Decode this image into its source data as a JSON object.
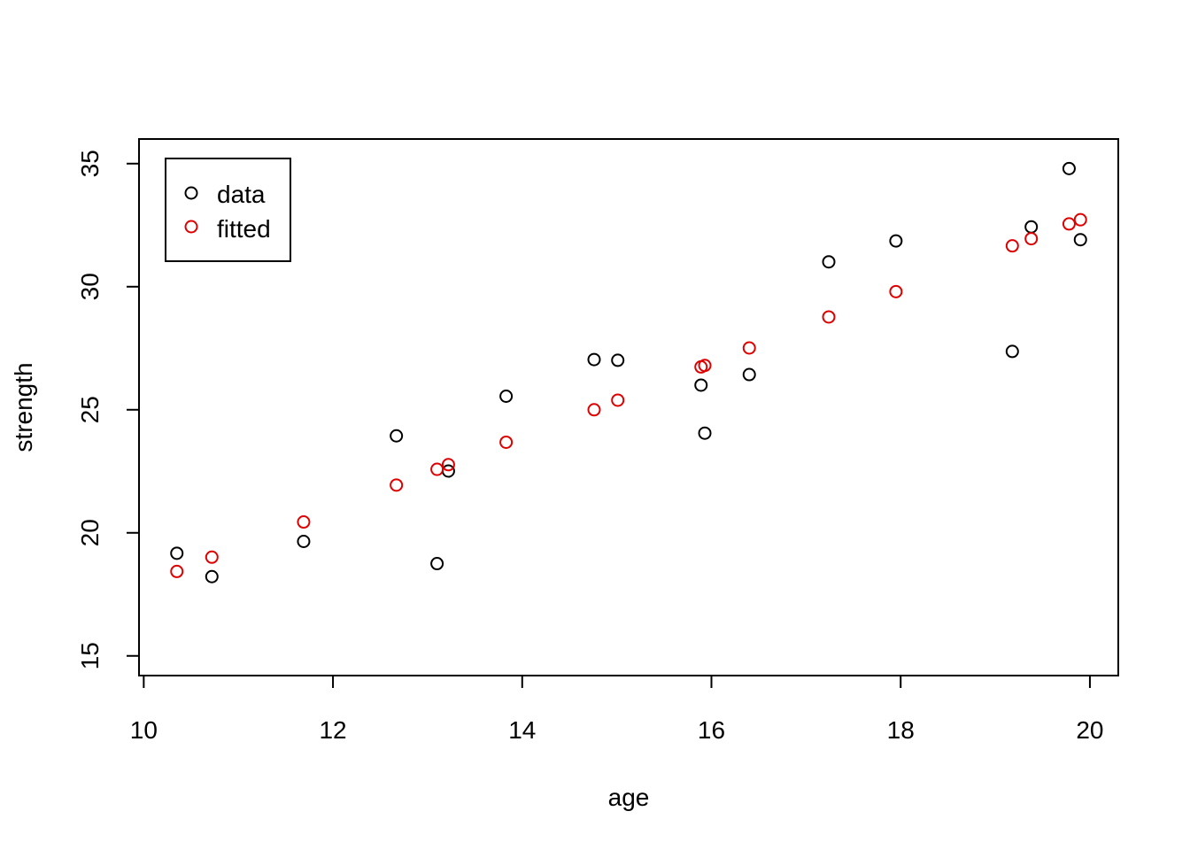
{
  "chart_data": {
    "type": "scatter",
    "xlabel": "age",
    "ylabel": "strength",
    "xlim": [
      9.95,
      20.3
    ],
    "ylim": [
      14.2,
      36.0
    ],
    "xticks": [
      "10",
      "12",
      "14",
      "16",
      "18",
      "20"
    ],
    "yticks": [
      "15",
      "20",
      "25",
      "30",
      "35"
    ],
    "grid": false,
    "legend_position": "top-left",
    "legend": [
      {
        "label": "data",
        "color": "#000000"
      },
      {
        "label": "fitted",
        "color": "#DF0000"
      }
    ],
    "series": [
      {
        "name": "data",
        "color": "#000000",
        "points": [
          [
            10.35,
            19.17
          ],
          [
            10.72,
            18.22
          ],
          [
            11.69,
            19.65
          ],
          [
            12.67,
            23.94
          ],
          [
            13.1,
            18.75
          ],
          [
            13.22,
            22.51
          ],
          [
            13.83,
            25.55
          ],
          [
            14.76,
            27.04
          ],
          [
            15.01,
            27.01
          ],
          [
            15.89,
            26.0
          ],
          [
            15.93,
            24.05
          ],
          [
            16.4,
            26.43
          ],
          [
            17.24,
            31.01
          ],
          [
            17.95,
            31.86
          ],
          [
            19.18,
            27.37
          ],
          [
            19.38,
            32.43
          ],
          [
            19.78,
            34.8
          ],
          [
            19.9,
            31.91
          ]
        ]
      },
      {
        "name": "fitted",
        "color": "#DF0000",
        "points": [
          [
            10.35,
            18.43
          ],
          [
            10.72,
            19.01
          ],
          [
            11.69,
            20.44
          ],
          [
            12.67,
            21.94
          ],
          [
            13.1,
            22.58
          ],
          [
            13.22,
            22.77
          ],
          [
            13.83,
            23.68
          ],
          [
            14.76,
            25.0
          ],
          [
            15.01,
            25.39
          ],
          [
            15.89,
            26.74
          ],
          [
            15.93,
            26.8
          ],
          [
            16.4,
            27.51
          ],
          [
            17.24,
            28.77
          ],
          [
            17.95,
            29.8
          ],
          [
            19.18,
            31.66
          ],
          [
            19.38,
            31.95
          ],
          [
            19.78,
            32.55
          ],
          [
            19.9,
            32.72
          ]
        ]
      }
    ]
  }
}
